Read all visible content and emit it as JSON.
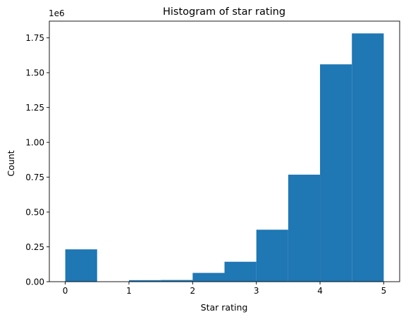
{
  "chart_data": {
    "type": "bar",
    "title": "Histogram of star rating",
    "xlabel": "Star rating",
    "ylabel": "Count",
    "y_offset_text": "1e6",
    "bin_edges": [
      0,
      0.5,
      1,
      1.5,
      2,
      2.5,
      3,
      3.5,
      4,
      4.5,
      5
    ],
    "values": [
      0.232,
      0.0,
      0.011,
      0.012,
      0.063,
      0.143,
      0.373,
      0.768,
      1.56,
      1.782
    ],
    "value_scale": 1000000,
    "xlim": [
      -0.25,
      5.25
    ],
    "ylim": [
      0,
      1.87
    ],
    "xticks": [
      0,
      1,
      2,
      3,
      4,
      5
    ],
    "xtick_labels": [
      "0",
      "1",
      "2",
      "3",
      "4",
      "5"
    ],
    "yticks": [
      0,
      0.25,
      0.5,
      0.75,
      1.0,
      1.25,
      1.5,
      1.75
    ],
    "ytick_labels": [
      "0.00",
      "0.25",
      "0.50",
      "0.75",
      "1.00",
      "1.25",
      "1.50",
      "1.75"
    ],
    "grid": false,
    "bar_color": "#1f77b4"
  }
}
